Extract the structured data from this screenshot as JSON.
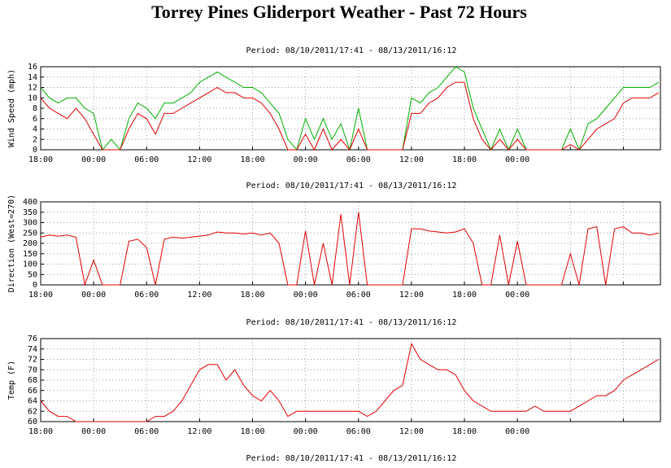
{
  "title": "Torrey Pines Gliderport Weather - Past 72 Hours",
  "footer": "Period: 08/10/2011/17:41 - 08/13/2011/16:12",
  "chart_data": [
    {
      "type": "line",
      "subtitle": "Period: 08/10/2011/17:41 - 08/13/2011/16:12",
      "y_label": "Wind Speed (mph)",
      "xlim": [
        0,
        70.2
      ],
      "xticks": [
        {
          "value": 0,
          "label": "18:00"
        },
        {
          "value": 6,
          "label": "00:00"
        },
        {
          "value": 12,
          "label": "06:00"
        },
        {
          "value": 18,
          "label": "12:00"
        },
        {
          "value": 24,
          "label": "18:00"
        },
        {
          "value": 30,
          "label": "00:00"
        },
        {
          "value": 36,
          "label": "06:00"
        },
        {
          "value": 42,
          "label": "12:00"
        },
        {
          "value": 48,
          "label": "18:00"
        },
        {
          "value": 54,
          "label": "00:00"
        },
        {
          "value": 60,
          "label": null
        },
        {
          "value": 66,
          "label": null
        }
      ],
      "ylim": [
        0,
        16
      ],
      "yticks": [
        0,
        2,
        4,
        6,
        8,
        10,
        12,
        14,
        16
      ],
      "grid": true,
      "x": [
        0,
        1,
        2,
        3,
        4,
        5,
        6,
        7,
        8,
        9,
        10,
        11,
        12,
        13,
        14,
        15,
        16,
        17,
        18,
        19,
        20,
        21,
        22,
        23,
        24,
        25,
        26,
        27,
        28,
        29,
        30,
        31,
        32,
        33,
        34,
        35,
        36,
        37,
        38,
        39,
        40,
        41,
        42,
        43,
        44,
        45,
        46,
        47,
        48,
        49,
        50,
        51,
        52,
        53,
        54,
        55,
        56,
        57,
        58,
        59,
        60,
        61,
        62,
        63,
        64,
        65,
        66,
        67,
        68,
        69,
        70
      ],
      "series": [
        {
          "color": "#00b000",
          "values": [
            12,
            10,
            9,
            10,
            10,
            8,
            7,
            0,
            2,
            0,
            6,
            9,
            8,
            6,
            9,
            9,
            10,
            11,
            13,
            14,
            15,
            14,
            13,
            12,
            12,
            11,
            9,
            7,
            2,
            0,
            6,
            2,
            6,
            2,
            5,
            0,
            8,
            0,
            0,
            0,
            0,
            0,
            10,
            9,
            11,
            12,
            14,
            16,
            15,
            8,
            4,
            0,
            4,
            0,
            4,
            0,
            0,
            0,
            0,
            0,
            4,
            0,
            5,
            6,
            8,
            10,
            12,
            12,
            12,
            12,
            13
          ]
        },
        {
          "color": "#e00000",
          "values": [
            10,
            8,
            7,
            6,
            8,
            6,
            3,
            0,
            0,
            0,
            4,
            7,
            6,
            3,
            7,
            7,
            8,
            9,
            10,
            11,
            12,
            11,
            11,
            10,
            10,
            9,
            7,
            4,
            0,
            0,
            3,
            0,
            4,
            0,
            2,
            0,
            4,
            0,
            0,
            0,
            0,
            0,
            7,
            7,
            9,
            10,
            12,
            13,
            13,
            6,
            2,
            0,
            2,
            0,
            2,
            0,
            0,
            0,
            0,
            0,
            1,
            0,
            2,
            4,
            5,
            6,
            9,
            10,
            10,
            10,
            11
          ]
        }
      ]
    },
    {
      "type": "line",
      "subtitle": "Period: 08/10/2011/17:41 - 08/13/2011/16:12",
      "y_label": "Direction (West=270)",
      "xlim": [
        0,
        70.2
      ],
      "xticks": [
        {
          "value": 0,
          "label": "18:00"
        },
        {
          "value": 6,
          "label": "00:00"
        },
        {
          "value": 12,
          "label": "06:00"
        },
        {
          "value": 18,
          "label": "12:00"
        },
        {
          "value": 24,
          "label": "18:00"
        },
        {
          "value": 30,
          "label": "00:00"
        },
        {
          "value": 36,
          "label": "06:00"
        },
        {
          "value": 42,
          "label": "12:00"
        },
        {
          "value": 48,
          "label": "18:00"
        },
        {
          "value": 54,
          "label": "00:00"
        },
        {
          "value": 60,
          "label": null
        },
        {
          "value": 66,
          "label": null
        }
      ],
      "ylim": [
        0,
        400
      ],
      "yticks": [
        0,
        50,
        100,
        150,
        200,
        250,
        300,
        350,
        400
      ],
      "grid": true,
      "x": [
        0,
        1,
        2,
        3,
        4,
        5,
        6,
        7,
        8,
        9,
        10,
        11,
        12,
        13,
        14,
        15,
        16,
        17,
        18,
        19,
        20,
        21,
        22,
        23,
        24,
        25,
        26,
        27,
        28,
        29,
        30,
        31,
        32,
        33,
        34,
        35,
        36,
        37,
        38,
        39,
        40,
        41,
        42,
        43,
        44,
        45,
        46,
        47,
        48,
        49,
        50,
        51,
        52,
        53,
        54,
        55,
        56,
        57,
        58,
        59,
        60,
        61,
        62,
        63,
        64,
        65,
        66,
        67,
        68,
        69,
        70
      ],
      "series": [
        {
          "color": "#e00000",
          "values": [
            230,
            240,
            235,
            240,
            230,
            0,
            120,
            0,
            0,
            0,
            210,
            220,
            180,
            0,
            220,
            230,
            225,
            230,
            235,
            240,
            255,
            250,
            250,
            245,
            250,
            240,
            250,
            200,
            0,
            0,
            260,
            0,
            200,
            0,
            340,
            0,
            350,
            0,
            0,
            0,
            0,
            0,
            270,
            270,
            260,
            255,
            250,
            255,
            270,
            200,
            0,
            0,
            240,
            0,
            210,
            0,
            0,
            0,
            0,
            0,
            150,
            0,
            270,
            280,
            0,
            270,
            280,
            250,
            250,
            240,
            250
          ]
        }
      ]
    },
    {
      "type": "line",
      "subtitle": "Period: 08/10/2011/17:41 - 08/13/2011/16:12",
      "y_label": "Temp (F)",
      "xlim": [
        0,
        70.2
      ],
      "xticks": [
        {
          "value": 0,
          "label": "18:00"
        },
        {
          "value": 6,
          "label": "00:00"
        },
        {
          "value": 12,
          "label": "06:00"
        },
        {
          "value": 18,
          "label": "12:00"
        },
        {
          "value": 24,
          "label": "18:00"
        },
        {
          "value": 30,
          "label": "00:00"
        },
        {
          "value": 36,
          "label": "06:00"
        },
        {
          "value": 42,
          "label": "12:00"
        },
        {
          "value": 48,
          "label": "18:00"
        },
        {
          "value": 54,
          "label": "00:00"
        },
        {
          "value": 60,
          "label": null
        },
        {
          "value": 66,
          "label": null
        }
      ],
      "ylim": [
        60,
        76
      ],
      "yticks": [
        60,
        62,
        64,
        66,
        68,
        70,
        72,
        74,
        76
      ],
      "grid": true,
      "x": [
        0,
        1,
        2,
        3,
        4,
        5,
        6,
        7,
        8,
        9,
        10,
        11,
        12,
        13,
        14,
        15,
        16,
        17,
        18,
        19,
        20,
        21,
        22,
        23,
        24,
        25,
        26,
        27,
        28,
        29,
        30,
        31,
        32,
        33,
        34,
        35,
        36,
        37,
        38,
        39,
        40,
        41,
        42,
        43,
        44,
        45,
        46,
        47,
        48,
        49,
        50,
        51,
        52,
        53,
        54,
        55,
        56,
        57,
        58,
        59,
        60,
        61,
        62,
        63,
        64,
        65,
        66,
        67,
        68,
        69,
        70
      ],
      "series": [
        {
          "color": "#e00000",
          "values": [
            64,
            62,
            61,
            61,
            60,
            60,
            60,
            60,
            60,
            60,
            60,
            60,
            60,
            61,
            61,
            62,
            64,
            67,
            70,
            71,
            71,
            68,
            70,
            67,
            65,
            64,
            66,
            64,
            61,
            62,
            62,
            62,
            62,
            62,
            62,
            62,
            62,
            61,
            62,
            64,
            66,
            67,
            75,
            72,
            71,
            70,
            70,
            69,
            66,
            64,
            63,
            62,
            62,
            62,
            62,
            62,
            63,
            62,
            62,
            62,
            62,
            63,
            64,
            65,
            65,
            66,
            68,
            69,
            70,
            71,
            72
          ]
        }
      ]
    }
  ]
}
